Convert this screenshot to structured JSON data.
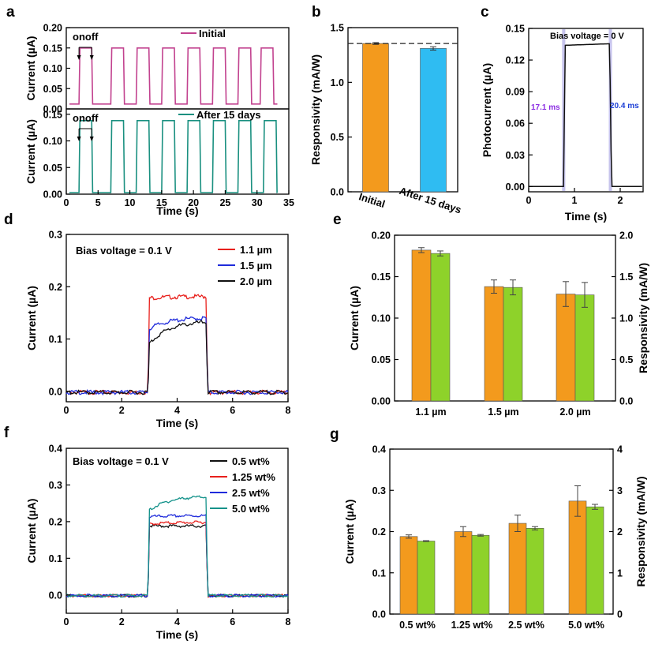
{
  "chart_data": [
    {
      "panel": "a",
      "type": "line",
      "subplots": [
        {
          "legend": "Initial",
          "color": "#c2428f",
          "ylabel": "Current (µA)",
          "ylim": [
            0,
            0.2
          ],
          "yticks": [
            "0.00",
            "0.05",
            "0.10",
            "0.15",
            "0.20"
          ],
          "baseline": 0.012,
          "on_value": 0.15,
          "pulses": [
            [
              2,
              4
            ],
            [
              7,
              9
            ],
            [
              11,
              13
            ],
            [
              15,
              17
            ],
            [
              19,
              21
            ],
            [
              23,
              25
            ],
            [
              27,
              29
            ],
            [
              30.5,
              32.5
            ]
          ],
          "annotation": "onoff"
        },
        {
          "legend": "After 15 days",
          "color": "#1a9080",
          "ylabel": "Current (µA)",
          "ylim": [
            0,
            0.16
          ],
          "yticks": [
            "0.00",
            "0.05",
            "0.10",
            "0.15"
          ],
          "baseline": 0.003,
          "on_value": 0.138,
          "pulses": [
            [
              2,
              4
            ],
            [
              7,
              9
            ],
            [
              11,
              13
            ],
            [
              15,
              17
            ],
            [
              19,
              21
            ],
            [
              23,
              25
            ],
            [
              27,
              29
            ],
            [
              31,
              33
            ]
          ],
          "annotation": "onoff"
        }
      ],
      "xlabel": "Time (s)",
      "xlim": [
        0,
        35
      ],
      "xticks": [
        "0",
        "5",
        "10",
        "15",
        "20",
        "25",
        "30",
        "35"
      ]
    },
    {
      "panel": "b",
      "type": "bar",
      "categories": [
        "Initial",
        "After 15  days"
      ],
      "values": [
        1.355,
        1.31
      ],
      "errors": [
        0.008,
        0.015
      ],
      "colors": [
        "#f39a1d",
        "#2fbcf2"
      ],
      "reference_line": 1.355,
      "ylabel": "Responsivity (mA/W)",
      "ylim": [
        0,
        1.5
      ],
      "yticks": [
        "0.0",
        "0.5",
        "1.0",
        "1.5"
      ]
    },
    {
      "panel": "c",
      "type": "line",
      "annotation": "Bias voltage = 0 V",
      "rise_label": "17.1 ms",
      "fall_label": "20.4 ms",
      "rise_label_color": "#8a2be2",
      "fall_label_color": "#1c3fd6",
      "highlight_color": "#b9b5e8",
      "x": [
        0,
        0.5,
        0.75,
        0.77,
        0.8,
        1.2,
        1.6,
        1.77,
        1.78,
        1.82,
        2.2,
        2.5
      ],
      "y": [
        0.0,
        0.0,
        0.0,
        0.07,
        0.134,
        0.135,
        0.1355,
        0.135,
        0.06,
        0.0,
        0.0,
        0.0
      ],
      "xlabel": "Time (s)",
      "ylabel": "Photocurrent (µA)",
      "xlim": [
        0,
        2.5
      ],
      "ylim": [
        -0.005,
        0.15
      ],
      "xticks": [
        "0",
        "1",
        "2"
      ],
      "yticks": [
        "0.00",
        "0.03",
        "0.06",
        "0.09",
        "0.12",
        "0.15"
      ]
    },
    {
      "panel": "d",
      "type": "line",
      "annotation": "Bias voltage = 0.1 V",
      "on_time": [
        2.95,
        5.05
      ],
      "series": [
        {
          "name": "1.1 µm",
          "color": "#e8201c",
          "on_start": 0.18,
          "on_end": 0.183
        },
        {
          "name": "1.5 µm",
          "color": "#1f2bdb",
          "on_start": 0.12,
          "on_end": 0.142
        },
        {
          "name": "2.0 µm",
          "color": "#111111",
          "on_start": 0.09,
          "on_end": 0.134
        }
      ],
      "xlabel": "Time (s)",
      "ylabel": "Current (µA)",
      "xlim": [
        0,
        8
      ],
      "ylim": [
        -0.02,
        0.3
      ],
      "xticks": [
        "0",
        "2",
        "4",
        "6",
        "8"
      ],
      "yticks": [
        "0.0",
        "0.1",
        "0.2",
        "0.3"
      ]
    },
    {
      "panel": "e",
      "type": "bar",
      "categories": [
        "1.1 µm",
        "1.5 µm",
        "2.0 µm"
      ],
      "series": [
        {
          "name": "Current",
          "color": "#f39a1d",
          "axis": "left",
          "values": [
            0.182,
            0.138,
            0.129
          ],
          "errors": [
            0.003,
            0.008,
            0.015
          ]
        },
        {
          "name": "Responsivity",
          "color": "#8ed22a",
          "axis": "right",
          "values": [
            1.78,
            1.37,
            1.28
          ],
          "errors": [
            0.03,
            0.09,
            0.15
          ]
        }
      ],
      "ylabel": "Current (µA)",
      "ylabel_right": "Responsivity (mA/W)",
      "ylim": [
        0,
        0.2
      ],
      "ylim_right": [
        0,
        2.0
      ],
      "yticks": [
        "0.00",
        "0.05",
        "0.10",
        "0.15",
        "0.20"
      ],
      "yticks_right": [
        "0.0",
        "0.5",
        "1.0",
        "1.5",
        "2.0"
      ],
      "left_color": "#f39a1d",
      "right_color": "#8ed22a"
    },
    {
      "panel": "f",
      "type": "line",
      "annotation": "Bias voltage = 0.1 V",
      "on_time": [
        2.95,
        5.05
      ],
      "series": [
        {
          "name": "0.5   wt%",
          "color": "#111111",
          "on_start": 0.19,
          "on_end": 0.19
        },
        {
          "name": "1.25 wt%",
          "color": "#e8201c",
          "on_start": 0.195,
          "on_end": 0.2
        },
        {
          "name": "2.5   wt%",
          "color": "#1f2bdb",
          "on_start": 0.215,
          "on_end": 0.218
        },
        {
          "name": "5.0   wt%",
          "color": "#13928a",
          "on_start": 0.23,
          "on_end": 0.27
        }
      ],
      "xlabel": "Time (s)",
      "ylabel": "Current (µA)",
      "xlim": [
        0,
        8
      ],
      "ylim": [
        -0.05,
        0.4
      ],
      "xticks": [
        "0",
        "2",
        "4",
        "6",
        "8"
      ],
      "yticks": [
        "0.0",
        "0.1",
        "0.2",
        "0.3",
        "0.4"
      ]
    },
    {
      "panel": "g",
      "type": "bar",
      "categories": [
        "0.5 wt%",
        "1.25 wt%",
        "2.5 wt%",
        "5.0 wt%"
      ],
      "series": [
        {
          "name": "Current",
          "color": "#f39a1d",
          "axis": "left",
          "values": [
            0.188,
            0.2,
            0.22,
            0.274
          ],
          "errors": [
            0.004,
            0.012,
            0.02,
            0.037
          ]
        },
        {
          "name": "Responsivity",
          "color": "#8ed22a",
          "axis": "right",
          "values": [
            1.77,
            1.91,
            2.08,
            2.6
          ],
          "errors": [
            0.01,
            0.02,
            0.04,
            0.06
          ]
        }
      ],
      "ylabel": "Current (µA)",
      "ylabel_right": "Responsivity (mA/W)",
      "ylim": [
        0,
        0.4
      ],
      "ylim_right": [
        0,
        4
      ],
      "yticks": [
        "0.0",
        "0.1",
        "0.2",
        "0.3",
        "0.4"
      ],
      "yticks_right": [
        "0",
        "1",
        "2",
        "3",
        "4"
      ],
      "left_color": "#f39a1d",
      "right_color": "#8ed22a"
    }
  ]
}
